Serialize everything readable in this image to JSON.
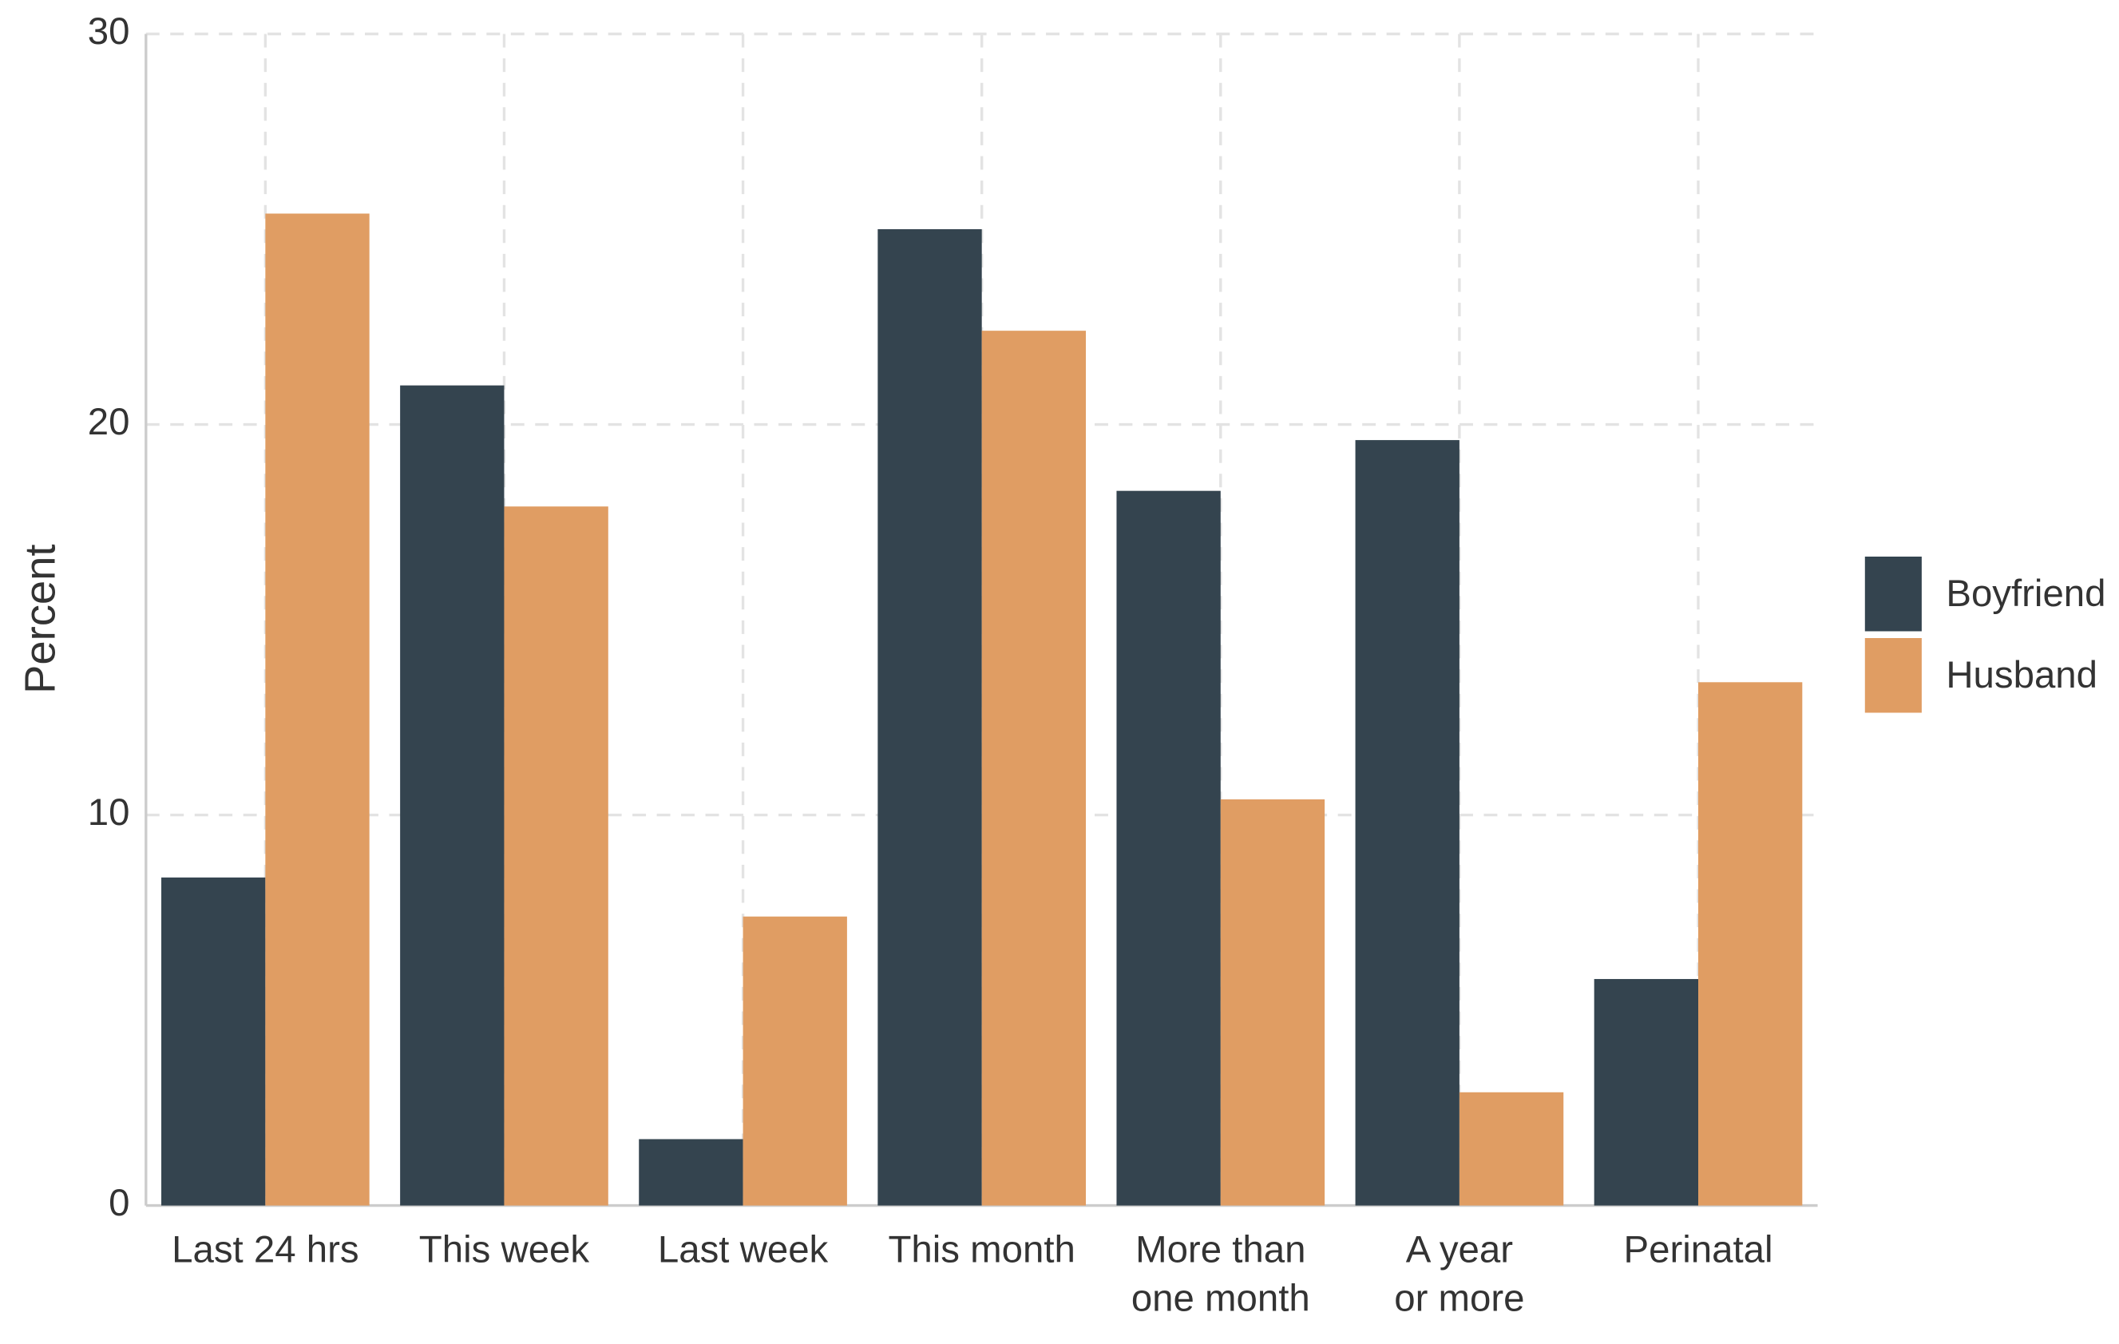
{
  "chart_data": {
    "type": "bar",
    "categories": [
      "Last 24 hrs",
      "This week",
      "Last week",
      "This month",
      "More than\none month",
      "A year\nor more",
      "Perinatal"
    ],
    "series": [
      {
        "name": "Boyfriend",
        "color": "#34444f",
        "values": [
          8.4,
          21.0,
          1.7,
          25.0,
          18.3,
          19.6,
          5.8
        ]
      },
      {
        "name": "Husband",
        "color": "#e09d63",
        "values": [
          25.4,
          17.9,
          7.4,
          22.4,
          10.4,
          2.9,
          13.4
        ]
      }
    ],
    "y_label": "Percent",
    "ylim": [
      0,
      30
    ],
    "yticks": [
      0,
      10,
      20,
      30
    ],
    "grid": true,
    "legend": "right"
  }
}
